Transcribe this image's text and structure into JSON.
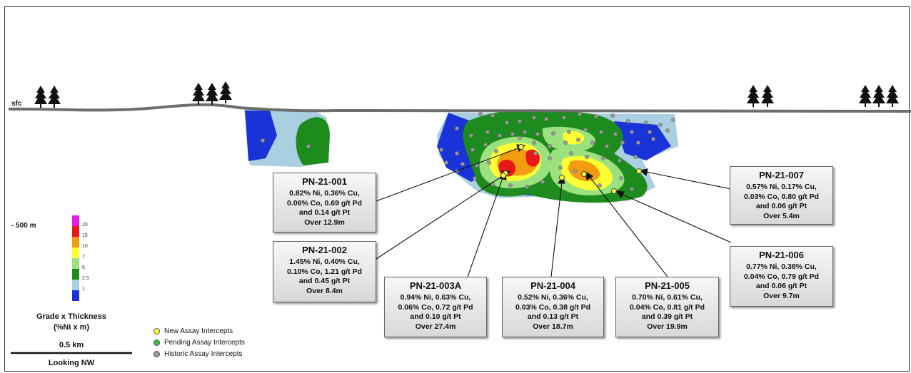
{
  "surface_label": "sfc",
  "depth_label": "- 500 m",
  "scale": {
    "title": "Grade x Thickness",
    "units": "(%Ni x m)",
    "bands": [
      {
        "label": "20",
        "color": "#e61ee6"
      },
      {
        "label": "15",
        "color": "#e81818"
      },
      {
        "label": "10",
        "color": "#f39c12"
      },
      {
        "label": "7",
        "color": "#ffff33"
      },
      {
        "label": "5",
        "color": "#9be17f"
      },
      {
        "label": "2.5",
        "color": "#1e8b1e"
      },
      {
        "label": "1",
        "color": "#a9cfe0"
      },
      {
        "label": "",
        "color": "#1a33d6"
      }
    ]
  },
  "bar_scale": {
    "label": "0.5 km",
    "view": "Looking NW"
  },
  "legend": [
    {
      "label": "New Assay Intercepts",
      "color": "#ffff33"
    },
    {
      "label": "Pending Assay Intercepts",
      "color": "#3fbf3f"
    },
    {
      "label": "Historic Assay Intercepts",
      "color": "#9a9a9a"
    }
  ],
  "callouts": [
    {
      "hole": "PN-21-001",
      "lines": [
        "0.82% Ni, 0.36% Cu,",
        "0.06% Co, 0.69 g/t Pd",
        "and 0.14 g/t Pt",
        "Over 12.9m"
      ]
    },
    {
      "hole": "PN-21-002",
      "lines": [
        "1.45% Ni, 0.40% Cu,",
        "0.10% Co, 1.21 g/t Pd",
        "and 0.45 g/t Pt",
        "Over 8.4m"
      ]
    },
    {
      "hole": "PN-21-003A",
      "lines": [
        "0.94% Ni, 0.63% Cu,",
        "0.06% Co, 0.72 g/t Pd",
        "and 0.10 g/t Pt",
        "Over 27.4m"
      ]
    },
    {
      "hole": "PN-21-004",
      "lines": [
        "0.52% Ni, 0.36% Cu,",
        "0.03% Co, 0.38 g/t Pd",
        "and 0.13 g/t Pt",
        "Over 18.7m"
      ]
    },
    {
      "hole": "PN-21-005",
      "lines": [
        "0.70% Ni, 0.61% Cu,",
        "0.04% Co, 0.81 g/t Pd",
        "and 0.39 g/t Pt",
        "Over 19.9m"
      ]
    },
    {
      "hole": "PN-21-006",
      "lines": [
        "0.77% Ni, 0.38% Cu,",
        "0.04% Co, 0.79 g/t Pd",
        "and 0.06 g/t Pt",
        "Over 9.7m"
      ]
    },
    {
      "hole": "PN-21-007",
      "lines": [
        "0.57% Ni, 0.17% Cu,",
        "0.03% Co, 0.80 g/t Pd",
        "and 0.06 g/t Pt",
        "Over 5.4m"
      ]
    }
  ]
}
